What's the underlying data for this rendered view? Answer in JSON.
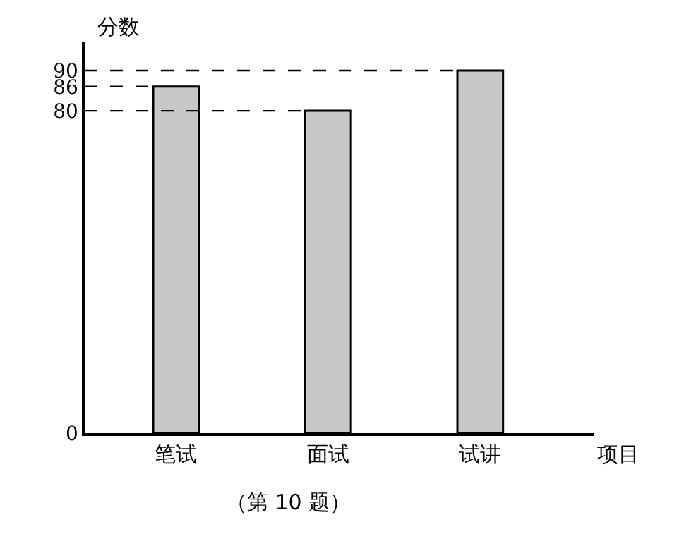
{
  "chart_data": {
    "type": "bar",
    "ylabel": "分数",
    "xlabel": "项目",
    "categories": [
      "笔试",
      "面试",
      "试讲"
    ],
    "values": [
      86,
      80,
      90
    ],
    "color": "#c8c8c8",
    "ylim": [
      0,
      97
    ],
    "yticks": [
      0,
      80,
      86,
      90
    ],
    "ref_lines": [
      {
        "axis": "y",
        "value": 90,
        "line_style": "dashed"
      },
      {
        "axis": "y",
        "value": 86,
        "line_style": "dashed"
      },
      {
        "axis": "y",
        "value": 80,
        "line_style": "dashed"
      }
    ],
    "grid": false,
    "legend": false,
    "annotations": [
      "（第 10 题）"
    ]
  }
}
